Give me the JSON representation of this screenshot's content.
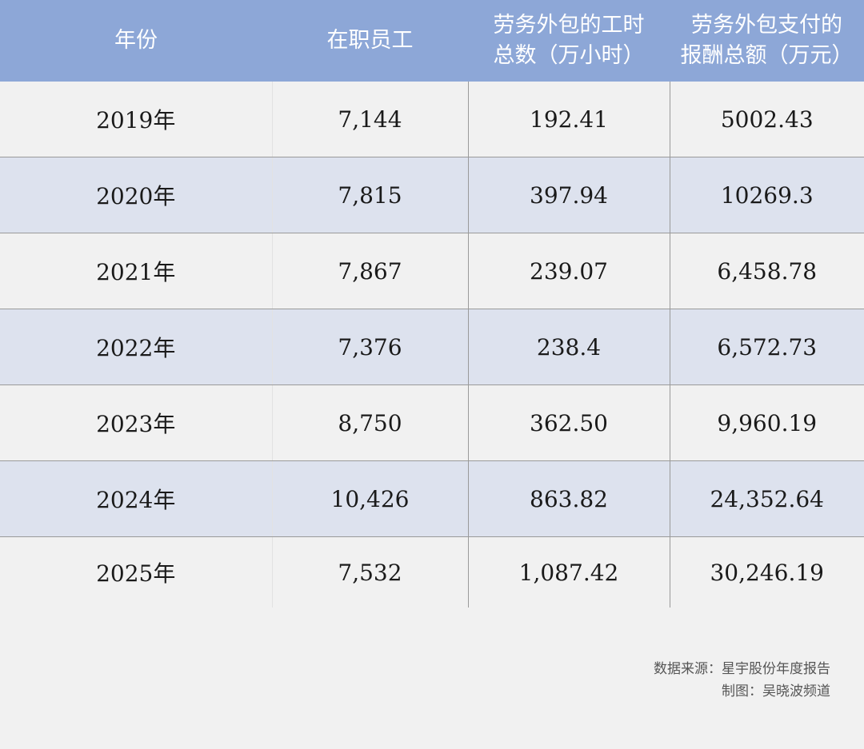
{
  "table": {
    "header": [
      "年份",
      "在职员工",
      "劳务外包的工时\n总数（万小时）",
      "劳务外包支付的\n报酬总额（万元）"
    ],
    "rows": [
      [
        "2019年",
        "7,144",
        "192.41",
        "5002.43"
      ],
      [
        "2020年",
        "7,815",
        "397.94",
        "10269.3"
      ],
      [
        "2021年",
        "7,867",
        "239.07",
        "6,458.78"
      ],
      [
        "2022年",
        "7,376",
        "238.4",
        "6,572.73"
      ],
      [
        "2023年",
        "8,750",
        "362.50",
        "9,960.19"
      ],
      [
        "2024年",
        "10,426",
        "863.82",
        "24,352.64"
      ],
      [
        "2025年",
        "7,532",
        "1,087.42",
        "30,246.19"
      ]
    ]
  },
  "footer": {
    "source": "数据来源：星宇股份年度报告",
    "credit": "制图：吴晓波频道"
  }
}
